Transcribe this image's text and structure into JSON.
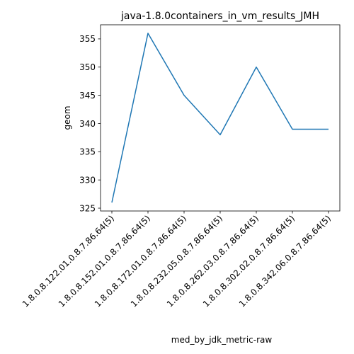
{
  "chart_data": {
    "type": "line",
    "title": "java-1.8.0containers_in_vm_results_JMH",
    "xlabel": "med_by_jdk_metric-raw",
    "ylabel": "geom",
    "categories": [
      "1.8.0.8.122.01.0.8.7.86.64(5)",
      "1.8.0.8.152.01.0.8.7.86.64(5)",
      "1.8.0.8.172.01.0.8.7.86.64(5)",
      "1.8.0.8.232.05.0.8.7.86.64(5)",
      "1.8.0.8.262.03.0.8.7.86.64(5)",
      "1.8.0.8.302.02.0.8.7.86.64(5)",
      "1.8.0.8.342.06.0.8.7.86.64(5)"
    ],
    "series": [
      {
        "values": [
          326,
          356,
          345,
          338,
          350,
          339,
          339
        ]
      }
    ],
    "yticks": [
      325,
      330,
      335,
      340,
      345,
      350,
      355
    ],
    "ylim": [
      324.5,
      357.5
    ],
    "grid": false,
    "line_color": "#1f77b4"
  }
}
